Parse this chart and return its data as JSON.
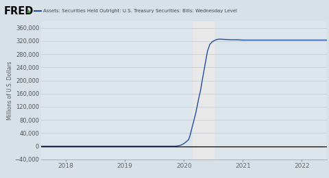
{
  "title": "Assets: Securities Held Outright: U.S. Treasury Securities: Bills: Wednesday Level",
  "ylabel": "Millions of U.S. Dollars",
  "header_bg_color": "#d8e0e8",
  "plot_bg_color": "#dce4ec",
  "line_color": "#1f4e9e",
  "recession_color": "#e8e8e8",
  "recession_start": 2020.15,
  "recession_end": 2020.52,
  "xlim": [
    2017.58,
    2022.42
  ],
  "ylim": [
    -40000,
    380000
  ],
  "yticks": [
    -40000,
    0,
    40000,
    80000,
    120000,
    160000,
    200000,
    240000,
    280000,
    320000,
    360000
  ],
  "xtick_labels": [
    "2018",
    "2019",
    "2020",
    "2021",
    "2022"
  ],
  "xtick_positions": [
    2018,
    2019,
    2020,
    2021,
    2022
  ],
  "data_x": [
    2017.58,
    2017.7,
    2017.8,
    2017.9,
    2018.0,
    2018.2,
    2018.4,
    2018.6,
    2018.8,
    2019.0,
    2019.2,
    2019.4,
    2019.6,
    2019.8,
    2019.85,
    2019.9,
    2019.95,
    2020.0,
    2020.05,
    2020.08,
    2020.1,
    2020.15,
    2020.2,
    2020.25,
    2020.28,
    2020.32,
    2020.36,
    2020.4,
    2020.44,
    2020.48,
    2020.52,
    2020.56,
    2020.6,
    2020.7,
    2020.8,
    2020.9,
    2021.0,
    2021.2,
    2021.4,
    2021.6,
    2021.8,
    2022.0,
    2022.2,
    2022.42
  ],
  "data_y": [
    0,
    0,
    0,
    0,
    0,
    0,
    0,
    0,
    0,
    0,
    0,
    0,
    0,
    0,
    0,
    1000,
    3000,
    8000,
    15000,
    20000,
    30000,
    65000,
    100000,
    145000,
    168000,
    210000,
    250000,
    290000,
    310000,
    318000,
    322000,
    325000,
    326000,
    325000,
    324000,
    324000,
    323000,
    323000,
    323000,
    323000,
    323000,
    323000,
    323000,
    323000
  ]
}
